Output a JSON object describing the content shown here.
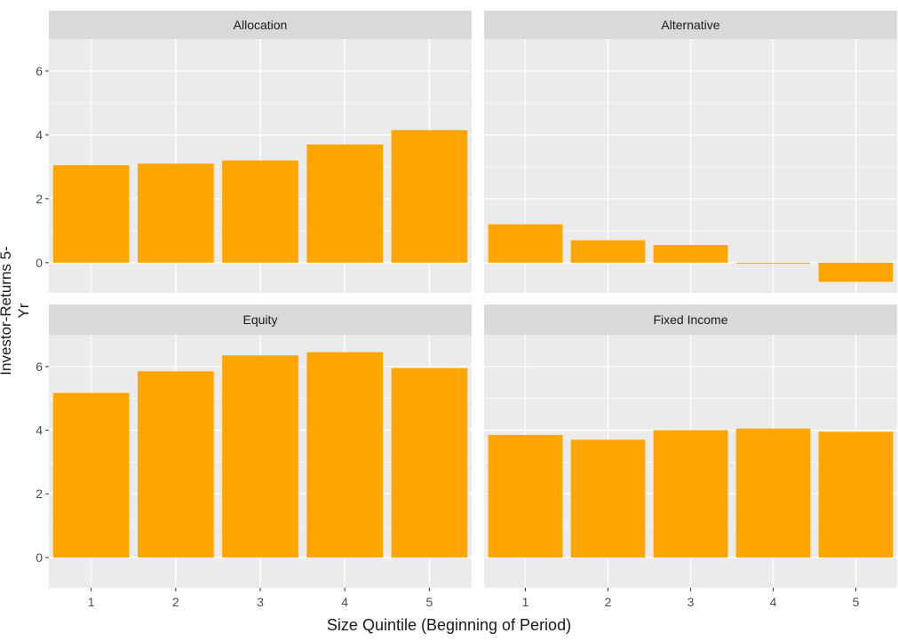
{
  "chart_data": {
    "type": "bar",
    "layout": "facet-grid 2x2",
    "xlabel": "Size Quintile (Beginning of Period)",
    "ylabel": "Investor-Returns 5-Yr",
    "categories": [
      "1",
      "2",
      "3",
      "4",
      "5"
    ],
    "ylim": [
      -0.95,
      7.0
    ],
    "yticks": [
      0,
      2,
      4,
      6
    ],
    "grid": true,
    "bar_color": "#FFA500",
    "panel_background": "#EBEBEB",
    "strip_background": "#D9D9D9",
    "facets": [
      {
        "title": "Allocation",
        "values": [
          3.05,
          3.1,
          3.2,
          3.7,
          4.15
        ]
      },
      {
        "title": "Alternative",
        "values": [
          1.2,
          0.7,
          0.55,
          -0.03,
          -0.6
        ]
      },
      {
        "title": "Equity",
        "values": [
          5.17,
          5.85,
          6.35,
          6.45,
          5.95
        ]
      },
      {
        "title": "Fixed Income",
        "values": [
          3.85,
          3.7,
          4.0,
          4.05,
          3.95
        ]
      }
    ]
  }
}
